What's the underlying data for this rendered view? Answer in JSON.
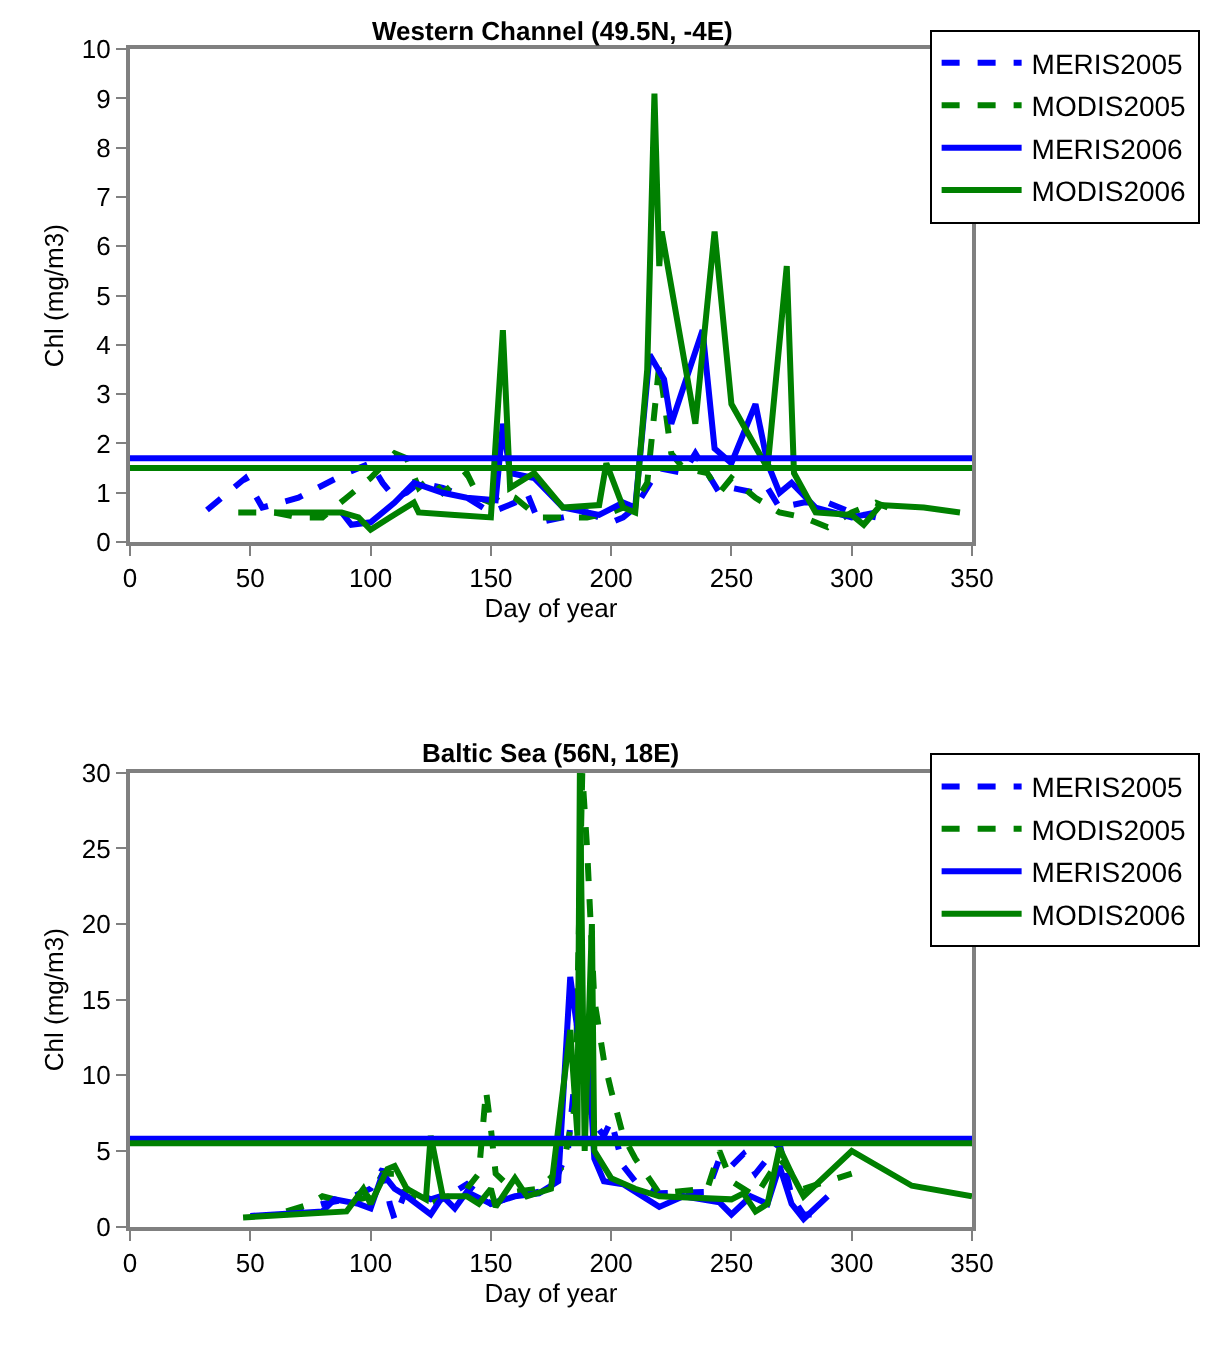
{
  "chart_data": [
    {
      "type": "line",
      "title": "Western Channel (49.5N, -4E)",
      "xlabel": "Day of year",
      "ylabel": "Chl (mg/m3)",
      "xlim": [
        0,
        350
      ],
      "xticks": [
        0,
        50,
        100,
        150,
        200,
        250,
        300,
        350
      ],
      "ylim": [
        0,
        10
      ],
      "yticks": [
        0,
        1,
        2,
        3,
        4,
        5,
        6,
        7,
        8,
        9,
        10
      ],
      "legend": "top right",
      "ref_lines": [
        {
          "axis": "y",
          "value": 1.7,
          "color": "#0000ff"
        },
        {
          "axis": "y",
          "value": 1.5,
          "color": "#008000"
        }
      ],
      "series": [
        {
          "name": "MERIS2005",
          "color": "#0000ff",
          "line_style": "dashed",
          "x": [
            32,
            48,
            55,
            70,
            90,
            100,
            105,
            110,
            115,
            120,
            130,
            140,
            150,
            160,
            165,
            170,
            180,
            190,
            200,
            205,
            210,
            220,
            230,
            235,
            245,
            250,
            260,
            265,
            270,
            280,
            290,
            300,
            310
          ],
          "values": [
            0.65,
            1.3,
            0.7,
            0.9,
            1.4,
            1.6,
            1.2,
            0.9,
            1.0,
            1.2,
            1.1,
            0.9,
            0.6,
            0.8,
            1.0,
            0.4,
            0.5,
            0.6,
            0.4,
            0.5,
            0.7,
            1.5,
            1.4,
            1.8,
            1.0,
            1.1,
            1.0,
            1.1,
            0.7,
            0.8,
            0.8,
            0.6,
            0.5
          ]
        },
        {
          "name": "MODIS2005",
          "color": "#008000",
          "line_style": "dashed",
          "x": [
            45,
            60,
            70,
            80,
            90,
            100,
            110,
            115,
            120,
            125,
            130,
            140,
            145,
            150,
            155,
            160,
            170,
            180,
            190,
            200,
            210,
            215,
            220,
            225,
            230,
            240,
            245,
            250,
            260,
            270,
            280,
            290,
            300,
            310,
            315
          ],
          "values": [
            0.6,
            0.6,
            0.5,
            0.5,
            0.9,
            1.3,
            1.8,
            1.7,
            1.1,
            1.3,
            1.0,
            1.4,
            0.9,
            0.8,
            1.0,
            0.9,
            0.5,
            0.5,
            0.5,
            0.6,
            0.8,
            1.2,
            3.6,
            1.8,
            1.5,
            1.4,
            1.0,
            1.3,
            0.9,
            0.6,
            0.5,
            0.3,
            0.6,
            0.8,
            0.7
          ]
        },
        {
          "name": "MERIS2006",
          "color": "#0000ff",
          "line_style": "solid",
          "x": [
            88,
            92,
            100,
            110,
            118,
            130,
            140,
            152,
            155,
            158,
            168,
            180,
            195,
            205,
            210,
            216,
            222,
            225,
            238,
            243,
            250,
            260,
            265,
            270,
            275,
            285,
            300,
            310
          ],
          "values": [
            0.6,
            0.35,
            0.4,
            0.8,
            1.2,
            1.0,
            0.9,
            0.85,
            2.4,
            1.4,
            1.3,
            0.7,
            0.55,
            0.8,
            0.7,
            3.8,
            3.3,
            2.4,
            4.3,
            1.9,
            1.6,
            2.8,
            1.6,
            1.0,
            1.2,
            0.7,
            0.5,
            0.6
          ]
        },
        {
          "name": "MODIS2006",
          "color": "#008000",
          "line_style": "solid",
          "x": [
            60,
            88,
            95,
            100,
            108,
            118,
            120,
            135,
            150,
            155,
            158,
            168,
            180,
            195,
            198,
            205,
            210,
            215,
            218,
            220,
            221,
            235,
            243,
            250,
            265,
            273,
            276,
            285,
            300,
            305,
            312,
            330,
            345
          ],
          "values": [
            0.6,
            0.6,
            0.5,
            0.25,
            0.5,
            0.8,
            0.6,
            0.55,
            0.5,
            4.3,
            1.1,
            1.4,
            0.7,
            0.75,
            1.6,
            0.7,
            0.6,
            3.5,
            9.1,
            5.6,
            6.3,
            2.4,
            6.3,
            2.8,
            1.5,
            5.6,
            1.4,
            0.6,
            0.55,
            0.35,
            0.75,
            0.7,
            0.6
          ]
        }
      ]
    },
    {
      "type": "line",
      "title": "Baltic Sea (56N, 18E)",
      "xlabel": "Day of year",
      "ylabel": "Chl (mg/m3)",
      "xlim": [
        0,
        350
      ],
      "xticks": [
        0,
        50,
        100,
        150,
        200,
        250,
        300,
        350
      ],
      "ylim": [
        0,
        30
      ],
      "yticks": [
        0,
        5,
        10,
        15,
        20,
        25,
        30
      ],
      "legend": "top right",
      "ref_lines": [
        {
          "axis": "y",
          "value": 5.8,
          "color": "#0000ff"
        },
        {
          "axis": "y",
          "value": 5.5,
          "color": "#008000"
        }
      ],
      "series": [
        {
          "name": "MERIS2005",
          "color": "#0000ff",
          "line_style": "dashed",
          "x": [
            65,
            80,
            90,
            100,
            105,
            108,
            110,
            115,
            125,
            135,
            140,
            150,
            160,
            170,
            178,
            182,
            185,
            188,
            192,
            197,
            200,
            205,
            210,
            220,
            240,
            245,
            250,
            255,
            260,
            265,
            270,
            275,
            280,
            290
          ],
          "values": [
            0.8,
            1.5,
            1.8,
            2.5,
            3.8,
            1.5,
            0.5,
            2.5,
            1.8,
            2.3,
            2.8,
            1.5,
            2.0,
            2.3,
            3.5,
            5.0,
            10,
            14,
            7,
            6,
            7,
            4,
            3,
            2.2,
            2.3,
            4.5,
            4.0,
            4.8,
            3.5,
            4.5,
            5.5,
            2.0,
            0.8,
            0.8
          ]
        },
        {
          "name": "MODIS2005",
          "color": "#008000",
          "line_style": "dashed",
          "x": [
            65,
            75,
            80,
            90,
            100,
            105,
            110,
            115,
            125,
            140,
            145,
            148,
            150,
            152,
            160,
            170,
            180,
            185,
            188,
            190,
            193,
            197,
            200,
            205,
            210,
            220,
            240,
            245,
            250,
            260,
            270,
            280,
            290,
            300
          ],
          "values": [
            1.0,
            1.5,
            2.0,
            1.6,
            2.0,
            3.5,
            3.5,
            2.0,
            1.5,
            2.5,
            3.5,
            9,
            6.5,
            3.5,
            2.3,
            2.5,
            4,
            8,
            30,
            25,
            15,
            11,
            9,
            6,
            4.5,
            2.2,
            2.5,
            5,
            3,
            2,
            4.5,
            2.5,
            3.0,
            3.5
          ]
        },
        {
          "name": "MERIS2006",
          "color": "#0000ff",
          "line_style": "solid",
          "x": [
            50,
            80,
            85,
            95,
            100,
            105,
            110,
            115,
            125,
            130,
            135,
            140,
            150,
            160,
            170,
            178,
            183,
            186,
            190,
            193,
            197,
            205,
            220,
            230,
            245,
            250,
            258,
            265,
            270,
            275,
            280,
            290
          ],
          "values": [
            0.7,
            1.0,
            1.8,
            1.5,
            1.2,
            3.5,
            2.5,
            2.0,
            0.8,
            2.0,
            1.2,
            2.3,
            1.5,
            2.0,
            2.2,
            3.0,
            16.5,
            13,
            13,
            4.5,
            3.0,
            2.8,
            1.3,
            2.0,
            1.6,
            0.8,
            2.0,
            1.5,
            4.0,
            1.5,
            0.5,
            2.0
          ]
        },
        {
          "name": "MODIS2006",
          "color": "#008000",
          "line_style": "solid",
          "x": [
            47,
            90,
            97,
            100,
            107,
            110,
            115,
            123,
            125,
            130,
            140,
            145,
            150,
            152,
            160,
            165,
            175,
            183,
            186,
            187,
            189,
            192,
            193,
            200,
            210,
            220,
            250,
            255,
            260,
            265,
            270,
            275,
            280,
            300,
            325,
            350
          ],
          "values": [
            0.6,
            1.0,
            2.5,
            1.5,
            3.8,
            4.0,
            2.5,
            1.8,
            6.0,
            2.0,
            2.0,
            1.5,
            2.5,
            1.3,
            3.2,
            2.0,
            2.5,
            13.0,
            6,
            30,
            5,
            20,
            5,
            3.2,
            2.5,
            2.0,
            1.8,
            2.2,
            1.0,
            1.5,
            5.2,
            3.5,
            2.0,
            5.0,
            2.7,
            2.0
          ]
        }
      ]
    }
  ]
}
